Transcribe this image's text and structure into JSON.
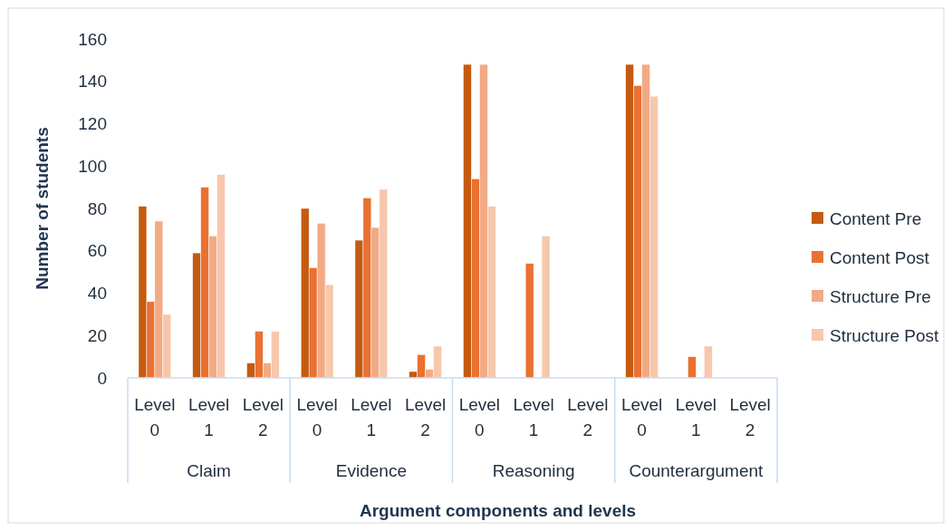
{
  "chart_data": {
    "type": "bar",
    "xlabel": "Argument components and levels",
    "ylabel": "Number of students",
    "categories": [
      "Level 0",
      "Level 1",
      "Level 2",
      "Level 0",
      "Level 1",
      "Level 2",
      "Level 0",
      "Level 1",
      "Level 2",
      "Level 0",
      "Level 1",
      "Level 2"
    ],
    "annotations": [
      "Claim",
      "Evidence",
      "Reasoning",
      "Counterargument"
    ],
    "series": [
      {
        "name": "Content Pre",
        "color": "#c55a11",
        "values": [
          81,
          59,
          7,
          80,
          65,
          3,
          148,
          null,
          null,
          148,
          null,
          null
        ]
      },
      {
        "name": "Content Post",
        "color": "#e97132",
        "values": [
          36,
          90,
          22,
          52,
          85,
          11,
          94,
          54,
          null,
          138,
          10,
          null
        ]
      },
      {
        "name": "Structure Pre",
        "color": "#f2aa84",
        "values": [
          74,
          67,
          7,
          73,
          71,
          4,
          148,
          null,
          null,
          148,
          null,
          null
        ]
      },
      {
        "name": "Structure Post",
        "color": "#f7c7ac",
        "values": [
          30,
          96,
          22,
          44,
          89,
          15,
          81,
          67,
          null,
          133,
          15,
          null
        ]
      }
    ],
    "ylim": [
      0,
      160
    ],
    "yticks": [
      0,
      20,
      40,
      60,
      80,
      100,
      120,
      140,
      160
    ],
    "grid": false,
    "legend": "right"
  }
}
